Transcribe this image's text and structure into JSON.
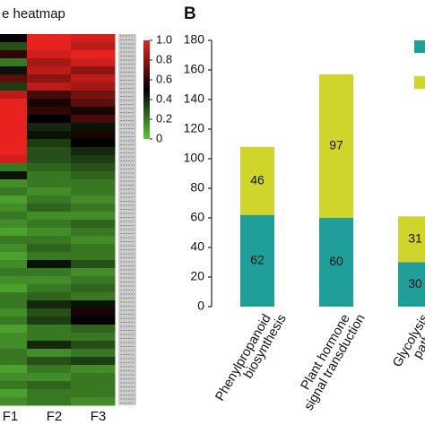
{
  "chart_data": [
    {
      "type": "heatmap",
      "title": "e heatmap",
      "columns": [
        "F1",
        "F2",
        "F3"
      ],
      "values": [
        [
          0.5,
          1,
          0.95
        ],
        [
          0.3,
          1,
          0.9
        ],
        [
          0.6,
          0.95,
          1
        ],
        [
          0.2,
          0.85,
          0.95
        ],
        [
          0.45,
          0.9,
          0.8
        ],
        [
          0.7,
          0.8,
          0.9
        ],
        [
          0.35,
          0.9,
          0.85
        ],
        [
          0.9,
          0.65,
          0.75
        ],
        [
          1,
          0.55,
          0.7
        ],
        [
          1,
          0.6,
          0.55
        ],
        [
          1,
          0.5,
          0.65
        ],
        [
          1,
          0.4,
          0.45
        ],
        [
          1,
          0.45,
          0.55
        ],
        [
          1,
          0.35,
          0.5
        ],
        [
          1,
          0.3,
          0.4
        ],
        [
          0.95,
          0.3,
          0.35
        ],
        [
          0.2,
          0.25,
          0.3
        ],
        [
          0.45,
          0.2,
          0.25
        ],
        [
          0.15,
          0.2,
          0.2
        ],
        [
          0.2,
          0.15,
          0.2
        ],
        [
          0.1,
          0.2,
          0.15
        ],
        [
          0.15,
          0.25,
          0.2
        ],
        [
          0.2,
          0.15,
          0.15
        ],
        [
          0.15,
          0.2,
          0.25
        ],
        [
          0.1,
          0.15,
          0.2
        ],
        [
          0.2,
          0.2,
          0.15
        ],
        [
          0.15,
          0.25,
          0.2
        ],
        [
          0.1,
          0.2,
          0.2
        ],
        [
          0.15,
          0.45,
          0.3
        ],
        [
          0.2,
          0.2,
          0.15
        ],
        [
          0.15,
          0.15,
          0.2
        ],
        [
          0.1,
          0.2,
          0.25
        ],
        [
          0.2,
          0.25,
          0.2
        ],
        [
          0.2,
          0.4,
          0.45
        ],
        [
          0.15,
          0.3,
          0.55
        ],
        [
          0.2,
          0.35,
          0.5
        ],
        [
          0.1,
          0.2,
          0.25
        ],
        [
          0.15,
          0.2,
          0.2
        ],
        [
          0.15,
          0.4,
          0.3
        ],
        [
          0.2,
          0.15,
          0.2
        ],
        [
          0.2,
          0.3,
          0.35
        ],
        [
          0.1,
          0.2,
          0.15
        ],
        [
          0.15,
          0.15,
          0.2
        ],
        [
          0.2,
          0.25,
          0.2
        ],
        [
          0.1,
          0.2,
          0.2
        ],
        [
          0.15,
          0.2,
          0.15
        ]
      ],
      "colorbar_lim": [
        0,
        1
      ],
      "colorbar_ticks": [
        {
          "value": 1,
          "label": "1.0"
        },
        0.8,
        0.6,
        0.4,
        0.2,
        0
      ]
    },
    {
      "type": "bar",
      "stacked": true,
      "panel_label": "B",
      "categories": [
        [
          "Phenylpropanoid",
          "biosynthesis"
        ],
        [
          "Plant hormone",
          "signal transduction"
        ],
        [
          "Glycolysis",
          "pathway"
        ]
      ],
      "series": [
        {
          "color": "#1f9e9a",
          "values": [
            62,
            60,
            30
          ]
        },
        {
          "color": "#cfd52a",
          "values": [
            46,
            97,
            31
          ]
        }
      ],
      "ylim": [
        0,
        180
      ],
      "yticks": [
        0,
        20,
        40,
        60,
        80,
        100,
        120,
        140,
        160,
        180
      ]
    }
  ]
}
